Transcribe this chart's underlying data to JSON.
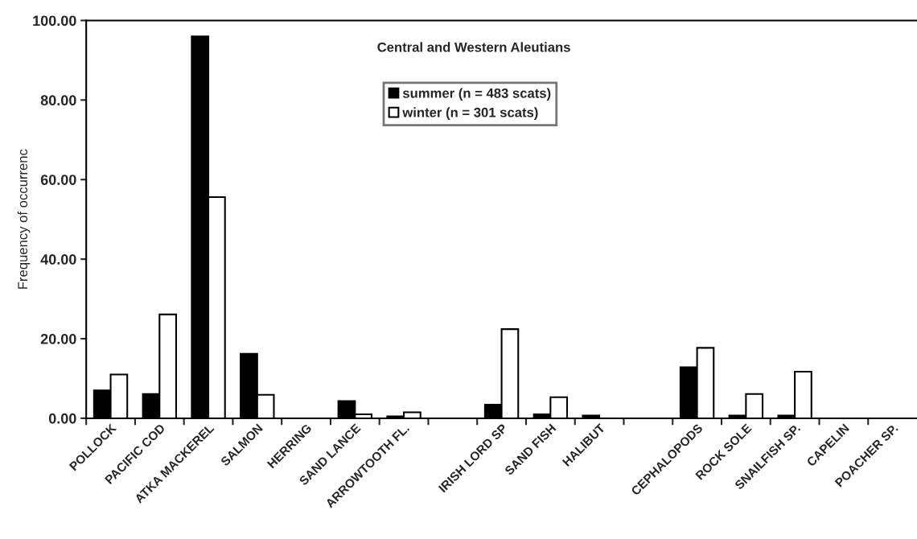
{
  "chart_data": {
    "type": "bar",
    "title": "Central and Western Aleutians",
    "ylabel": "Frequency of occurrenc",
    "categories": [
      "POLLOCK",
      "PACIFIC COD",
      "ATKA MACKEREL",
      "SALMON",
      "HERRING",
      "SAND LANCE",
      "ARROWTOOTH FL.",
      null,
      "IRISH LORD SP",
      "SAND FISH",
      "HALIBUT",
      null,
      "CEPHALOPODS",
      "ROCK SOLE",
      "SNAILFISH SP.",
      "CAPELIN",
      "POACHER SP."
    ],
    "series": [
      {
        "name": "summer (n = 483 scats)",
        "color": "#000000",
        "values": [
          7.0,
          6.1,
          96.0,
          16.2,
          0,
          4.3,
          0.5,
          0,
          3.4,
          1.0,
          0.7,
          0,
          12.8,
          0.7,
          0.7,
          0,
          0
        ]
      },
      {
        "name": "winter (n = 301 scats)",
        "color": "#ffffff",
        "values": [
          11.0,
          26.1,
          55.6,
          5.9,
          0,
          1.0,
          1.5,
          0,
          22.4,
          5.3,
          0,
          0,
          17.7,
          6.1,
          11.7,
          0,
          0
        ]
      }
    ],
    "ylim": [
      0,
      100
    ],
    "yticks": [
      {
        "value": 0,
        "label": "0.00"
      },
      {
        "value": 20,
        "label": "20.00"
      },
      {
        "value": 40,
        "label": "40.00"
      },
      {
        "value": 60,
        "label": "60.00"
      },
      {
        "value": 80,
        "label": "80.00"
      },
      {
        "value": 100,
        "label": "100.00"
      }
    ],
    "grid": false,
    "legend": "top"
  }
}
